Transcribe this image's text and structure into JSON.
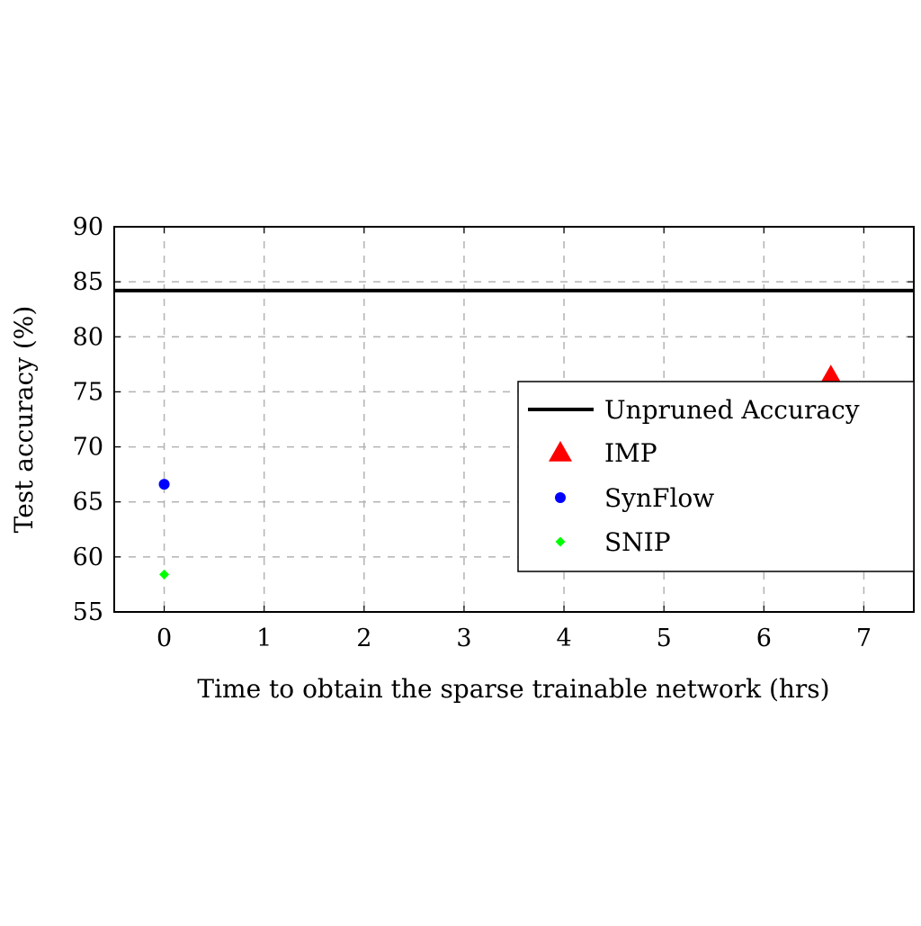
{
  "chart_data": {
    "type": "scatter",
    "xlabel": "Time to obtain the sparse trainable network (hrs)",
    "ylabel": "Test accuracy (%)",
    "xlim": [
      -0.5,
      7.5
    ],
    "ylim": [
      55,
      90
    ],
    "xticks": [
      "0",
      "1",
      "2",
      "3",
      "4",
      "5",
      "6",
      "7"
    ],
    "yticks": [
      "55",
      "60",
      "65",
      "70",
      "75",
      "80",
      "85",
      "90"
    ],
    "grid": true,
    "legend_position": "right",
    "reference_line": {
      "name": "Unpruned Accuracy",
      "y": 84.2,
      "color": "#000000"
    },
    "series": [
      {
        "name": "IMP",
        "marker": "triangle",
        "color": "#ff0000",
        "points": [
          {
            "x": 6.67,
            "y": 76.4
          }
        ]
      },
      {
        "name": "SynFlow",
        "marker": "circle",
        "color": "#0000ff",
        "points": [
          {
            "x": 0.0,
            "y": 66.6
          }
        ]
      },
      {
        "name": "SNIP",
        "marker": "diamond",
        "color": "#00ff00",
        "points": [
          {
            "x": 0.0,
            "y": 58.4
          }
        ]
      }
    ]
  }
}
